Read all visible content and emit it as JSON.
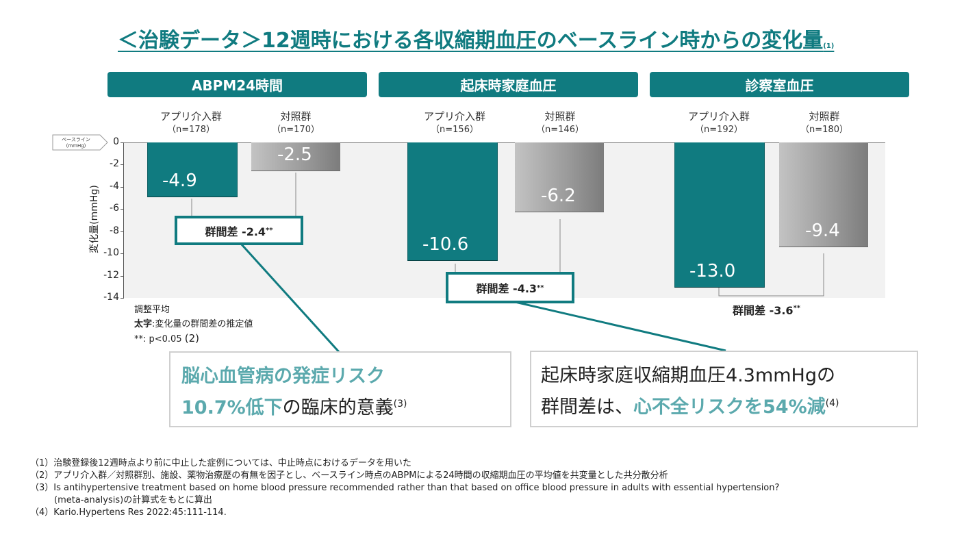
{
  "title": "＜治験データ＞12週時における各収縮期血圧のベースライン時からの変化量",
  "title_ref": "(1)",
  "panels": [
    {
      "title": "ABPM24時間",
      "app_label": "アプリ介入群",
      "app_n": "（n=178）",
      "ctl_label": "対照群",
      "ctl_n": "（n=170）",
      "diff": "群間差 -2.4",
      "diff_sig": "**"
    },
    {
      "title": "起床時家庭血圧",
      "app_label": "アプリ介入群",
      "app_n": "（n=156）",
      "ctl_label": "対照群",
      "ctl_n": "（n=146）",
      "diff": "群間差 -4.3",
      "diff_sig": "**"
    },
    {
      "title": "診察室血圧",
      "app_label": "アプリ介入群",
      "app_n": "（n=192）",
      "ctl_label": "対照群",
      "ctl_n": "（n=180）",
      "diff": "群間差 -3.6",
      "diff_sig": "**"
    }
  ],
  "baseline_tag": {
    "line1": "ベースライン",
    "line2": "(mmHg)"
  },
  "chart_data": {
    "type": "bar",
    "ylabel": "変化量(mmHg)",
    "ylim": [
      -14,
      0
    ],
    "yticks": [
      "0",
      "-2",
      "-4",
      "-6",
      "-8",
      "-10",
      "-12",
      "-14"
    ],
    "categories": [
      "ABPM24時間",
      "起床時家庭血圧",
      "診察室血圧"
    ],
    "series": [
      {
        "name": "アプリ介入群",
        "values": [
          -4.9,
          -10.6,
          -13.0
        ],
        "labels": [
          "-4.9",
          "-10.6",
          "-13.0"
        ],
        "color": "#107b80"
      },
      {
        "name": "対照群",
        "values": [
          -2.5,
          -6.2,
          -9.4
        ],
        "labels": [
          "-2.5",
          "-6.2",
          "-9.4"
        ],
        "color": "#9a9a9a"
      }
    ],
    "group_differences": [
      -2.4,
      -4.3,
      -3.6
    ]
  },
  "notes": {
    "line1": "調整平均",
    "line2_bold": "太字",
    "line2_rest": ":変化量の群間差の推定値",
    "line3": "**: p<0.05",
    "line3_ref": "(2)"
  },
  "callout_left": {
    "line1": "脳心血管病の発症リスク",
    "line2_hl": "10.7%低下",
    "line2_rest": "の臨床的意義",
    "ref": "(3)"
  },
  "callout_right": {
    "line1": "起床時家庭収縮期血圧4.3mmHgの",
    "line2_a": "群間差は、",
    "line2_hl": "心不全リスクを54%減",
    "ref": "(4)"
  },
  "footnotes": [
    "（1）治験登録後12週時点より前に中止した症例については、中止時点におけるデータを用いた",
    "（2）アプリ介入群／対照群別、施設、薬物治療歴の有無を因子とし、ベースライン時点のABPMによる24時間の収縮期血圧の平均値を共変量とした共分散分析",
    "（3）Is antihypertensive treatment based on home blood pressure recommended rather than that based on office blood pressure in adults with essential hypertension?",
    "(meta-analysis)の計算式をもとに算出",
    "（4）Kario.Hypertens Res 2022:45:111-114."
  ],
  "colors": {
    "accent": "#107b80",
    "highlight": "#5ba9ad",
    "control": "#9a9a9a"
  }
}
